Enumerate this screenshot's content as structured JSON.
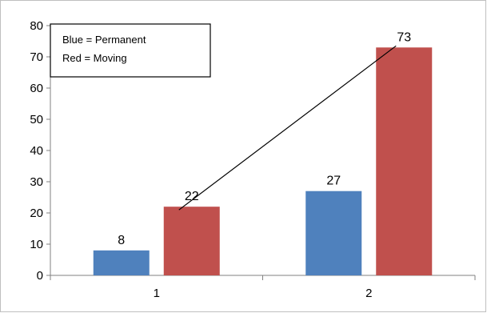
{
  "chart_data": {
    "type": "bar",
    "categories": [
      "1",
      "2"
    ],
    "series": [
      {
        "values": [
          8,
          27
        ],
        "color": "#4f81bd"
      },
      {
        "values": [
          22,
          73
        ],
        "color": "#c0504d"
      }
    ],
    "ylim": [
      0,
      80
    ],
    "ytick_step": 10,
    "ytick_labels": [
      "0",
      "10",
      "20",
      "30",
      "40",
      "50",
      "60",
      "70",
      "80"
    ],
    "grid": false,
    "legend_box": {
      "position": "top-left",
      "lines": [
        "Blue = Permanent",
        "Red = Moving"
      ]
    },
    "annotation_line": {
      "from": {
        "category": "1",
        "value": 22
      },
      "to": {
        "category": "2",
        "value": 73
      }
    }
  }
}
